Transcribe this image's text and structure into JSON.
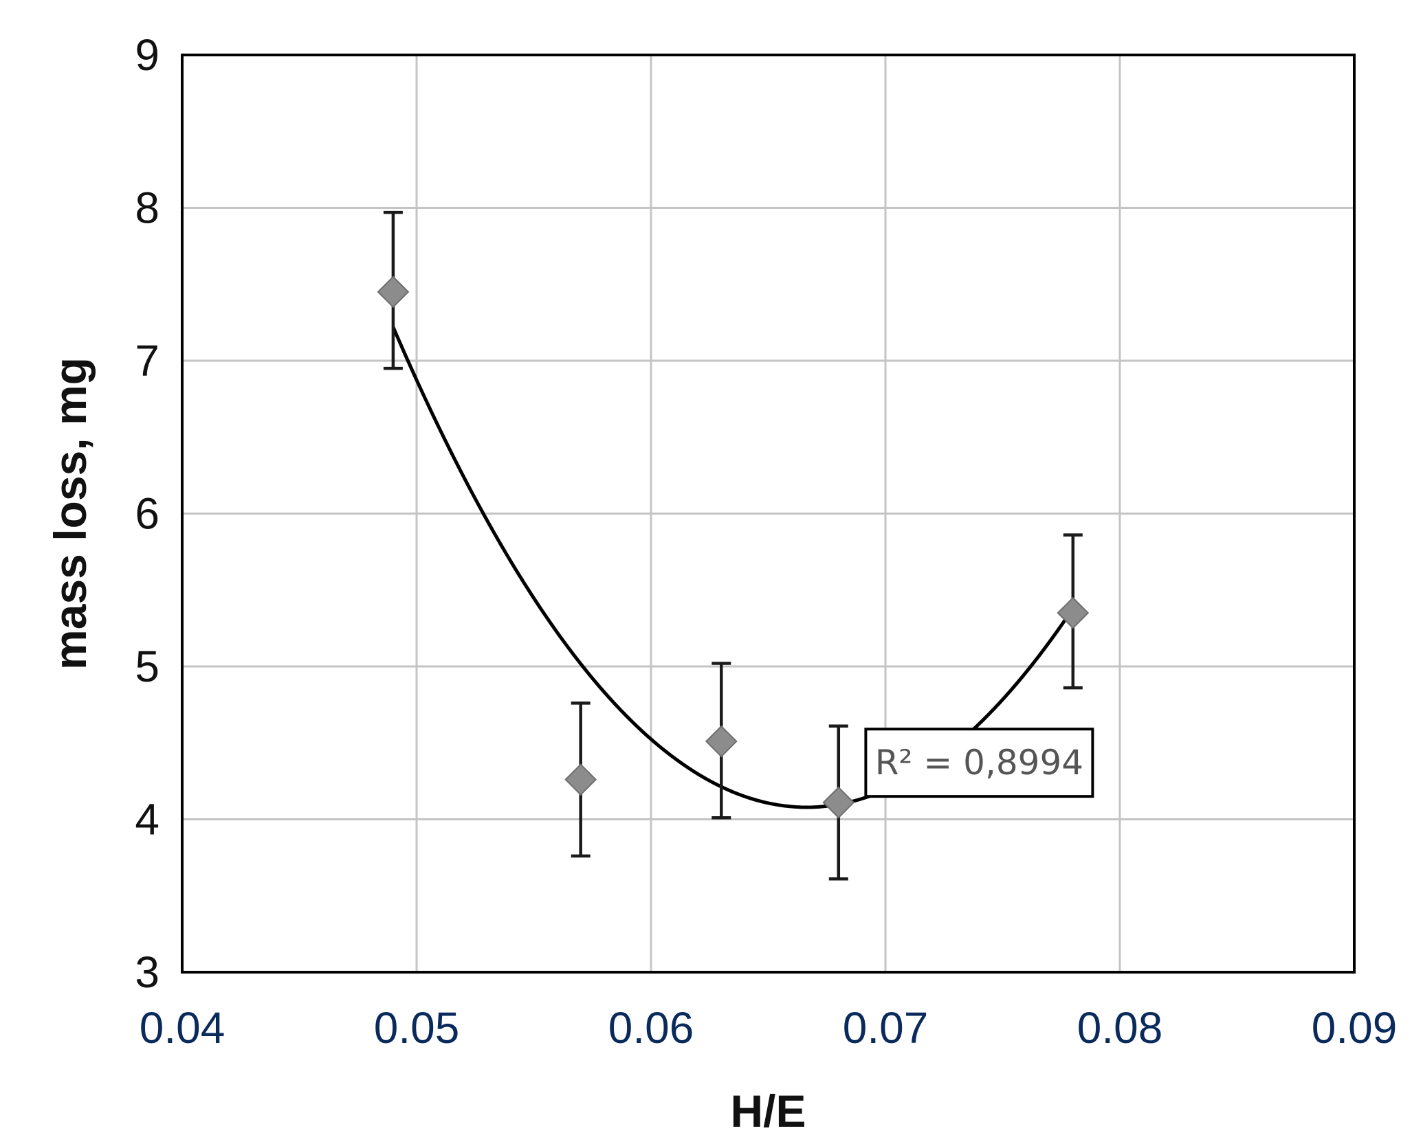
{
  "chart_data": {
    "type": "scatter",
    "title": "",
    "xlabel": "H/E",
    "ylabel": "mass loss, mg",
    "xlim": [
      0.04,
      0.09
    ],
    "ylim": [
      3,
      9
    ],
    "x_ticks": [
      "0.04",
      "0.05",
      "0.06",
      "0.07",
      "0.08",
      "0.09"
    ],
    "y_ticks": [
      "3",
      "4",
      "5",
      "6",
      "7",
      "8",
      "9"
    ],
    "grid": true,
    "legend": "none",
    "series": [
      {
        "marker": "diamond",
        "color": "#8c8c8c",
        "points": [
          {
            "x": 0.049,
            "y": 7.45,
            "err_low": 6.95,
            "err_high": 7.97
          },
          {
            "x": 0.057,
            "y": 4.26,
            "err_low": 3.76,
            "err_high": 4.76
          },
          {
            "x": 0.063,
            "y": 4.51,
            "err_low": 4.01,
            "err_high": 5.02
          },
          {
            "x": 0.068,
            "y": 4.11,
            "err_low": 3.61,
            "err_high": 4.61
          },
          {
            "x": 0.078,
            "y": 5.35,
            "err_low": 4.86,
            "err_high": 5.86
          }
        ]
      }
    ],
    "trendline": {
      "kind": "polynomial-2",
      "color": "#000000",
      "x_range": [
        0.049,
        0.078
      ],
      "points": [
        {
          "x": 0.049,
          "y": 7.22
        },
        {
          "x": 0.0663,
          "y": 4.08
        },
        {
          "x": 0.078,
          "y": 5.38
        }
      ]
    },
    "annotation": {
      "text": "R² = 0,8994",
      "near_x": 0.074,
      "near_y": 4.37
    }
  }
}
